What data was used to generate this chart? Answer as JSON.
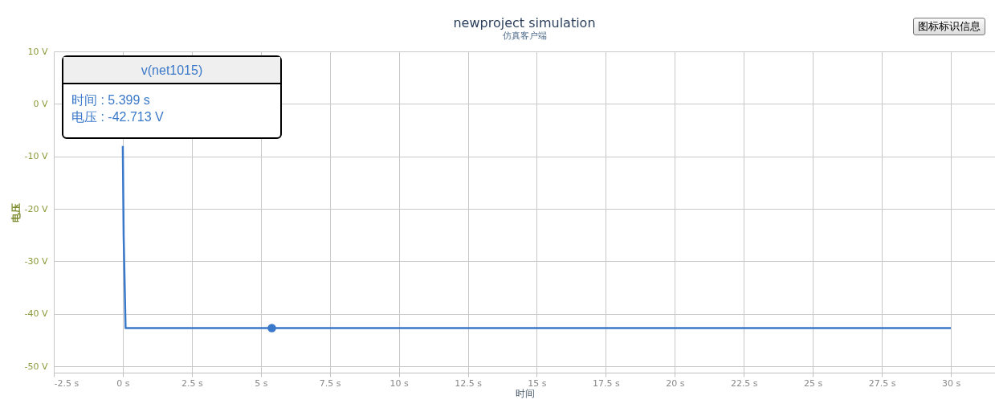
{
  "chart_data": {
    "type": "line",
    "title": "newproject simulation",
    "subtitle": "仿真客户端",
    "xlabel": "时间",
    "ylabel": "电压",
    "annotations": [
      "v(net1015)",
      "时间 : 5.399 s",
      "电压 : -42.713 V",
      "图标标识信息"
    ],
    "xlim": [
      -2.5,
      31.6
    ],
    "ylim": [
      -51.2,
      10
    ],
    "xticks": [
      {
        "value": -2.5,
        "label": "-2.5 s"
      },
      {
        "value": 0,
        "label": "0 s"
      },
      {
        "value": 2.5,
        "label": "2.5 s"
      },
      {
        "value": 5,
        "label": "5 s"
      },
      {
        "value": 7.5,
        "label": "7.5 s"
      },
      {
        "value": 10,
        "label": "10 s"
      },
      {
        "value": 12.5,
        "label": "12.5 s"
      },
      {
        "value": 15,
        "label": "15 s"
      },
      {
        "value": 17.5,
        "label": "17.5 s"
      },
      {
        "value": 20,
        "label": "20 s"
      },
      {
        "value": 22.5,
        "label": "22.5 s"
      },
      {
        "value": 25,
        "label": "25 s"
      },
      {
        "value": 27.5,
        "label": "27.5 s"
      },
      {
        "value": 30,
        "label": "30 s"
      }
    ],
    "yticks": [
      {
        "value": 10,
        "label": "10 V"
      },
      {
        "value": 0,
        "label": "0 V"
      },
      {
        "value": -10,
        "label": "-10 V"
      },
      {
        "value": -20,
        "label": "-20 V"
      },
      {
        "value": -30,
        "label": "-30 V"
      },
      {
        "value": -40,
        "label": "-40 V"
      },
      {
        "value": -50,
        "label": "-50 V"
      }
    ],
    "grid": true,
    "series": [
      {
        "color": "#3a78c9",
        "x": [
          0,
          0.03,
          0.1,
          30
        ],
        "values": [
          -8,
          -25,
          -42.7,
          -42.7
        ]
      },
      {
        "type": "scatter",
        "color": "#3a78c9",
        "x": [
          5.399
        ],
        "values": [
          -42.7
        ]
      }
    ]
  }
}
